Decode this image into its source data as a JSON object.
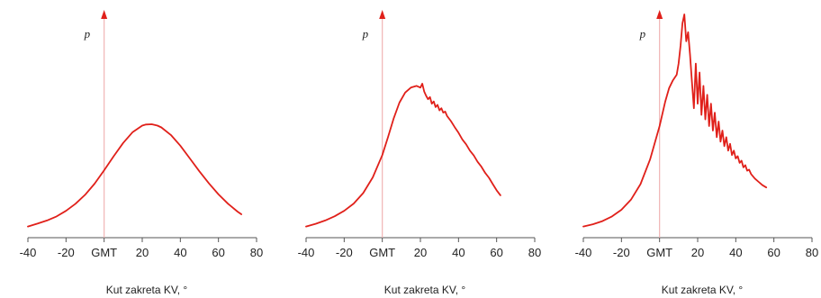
{
  "colors": {
    "curve": "#e0201a",
    "axis": "#555555",
    "tdc_line": "#f0b4b4",
    "tdc_arrow": "#e0201a"
  },
  "chart_data": [
    {
      "type": "line",
      "xlabel": "Kut zakreta KV, °",
      "ylabel": "p",
      "xlim": [
        -40,
        80
      ],
      "ylim": [
        0,
        1
      ],
      "xticks": [
        "-40",
        "-20",
        "GMT",
        "20",
        "40",
        "60",
        "80"
      ],
      "xtick_values": [
        -40,
        -20,
        0,
        20,
        40,
        60,
        80
      ],
      "series": [
        {
          "x": [
            -40,
            -35,
            -30,
            -25,
            -20,
            -15,
            -10,
            -5,
            0,
            5,
            10,
            15,
            20,
            22,
            25,
            28,
            30,
            35,
            40,
            45,
            50,
            55,
            60,
            65,
            70,
            72
          ],
          "y": [
            0.05,
            0.063,
            0.077,
            0.095,
            0.12,
            0.152,
            0.192,
            0.242,
            0.302,
            0.365,
            0.424,
            0.473,
            0.502,
            0.507,
            0.508,
            0.502,
            0.494,
            0.46,
            0.412,
            0.355,
            0.297,
            0.243,
            0.194,
            0.152,
            0.117,
            0.105
          ]
        }
      ]
    },
    {
      "type": "line",
      "xlabel": "Kut zakreta KV, °",
      "ylabel": "p",
      "xlim": [
        -40,
        80
      ],
      "ylim": [
        0,
        1
      ],
      "xticks": [
        "-40",
        "-20",
        "GMT",
        "20",
        "40",
        "60",
        "80"
      ],
      "xtick_values": [
        -40,
        -20,
        0,
        20,
        40,
        60,
        80
      ],
      "series": [
        {
          "x": [
            -40,
            -35,
            -30,
            -25,
            -20,
            -15,
            -10,
            -5,
            0,
            3,
            6,
            9,
            12,
            15,
            18,
            20,
            21,
            22,
            23,
            24,
            25,
            26,
            27,
            28,
            29,
            30,
            31,
            32,
            33,
            34,
            36,
            38,
            40,
            42,
            44,
            46,
            48,
            50,
            52,
            54,
            56,
            58,
            60,
            62
          ],
          "y": [
            0.05,
            0.062,
            0.077,
            0.096,
            0.12,
            0.153,
            0.2,
            0.27,
            0.37,
            0.45,
            0.535,
            0.605,
            0.65,
            0.672,
            0.68,
            0.672,
            0.69,
            0.655,
            0.635,
            0.62,
            0.63,
            0.6,
            0.61,
            0.585,
            0.595,
            0.57,
            0.58,
            0.56,
            0.565,
            0.545,
            0.522,
            0.495,
            0.47,
            0.44,
            0.418,
            0.39,
            0.368,
            0.34,
            0.318,
            0.29,
            0.268,
            0.24,
            0.212,
            0.19
          ]
        }
      ]
    },
    {
      "type": "line",
      "xlabel": "Kut zakreta KV, °",
      "ylabel": "p",
      "xlim": [
        -40,
        80
      ],
      "ylim": [
        0,
        1
      ],
      "xticks": [
        "-40",
        "-20",
        "GMT",
        "20",
        "40",
        "60",
        "80"
      ],
      "xtick_values": [
        -40,
        -20,
        0,
        20,
        40,
        60,
        80
      ],
      "series": [
        {
          "x": [
            -40,
            -35,
            -30,
            -25,
            -20,
            -15,
            -10,
            -5,
            0,
            3,
            5,
            7,
            9,
            10,
            11,
            12,
            13,
            14,
            15,
            16,
            17,
            18,
            19,
            20,
            21,
            22,
            23,
            24,
            25,
            26,
            27,
            28,
            29,
            30,
            31,
            32,
            33,
            34,
            35,
            36,
            37,
            38,
            39,
            40,
            41,
            42,
            43,
            44,
            45,
            46,
            47,
            48,
            50,
            52,
            54,
            56
          ],
          "y": [
            0.05,
            0.06,
            0.074,
            0.095,
            0.125,
            0.17,
            0.24,
            0.35,
            0.5,
            0.61,
            0.67,
            0.705,
            0.73,
            0.78,
            0.86,
            0.96,
            1.0,
            0.88,
            0.92,
            0.82,
            0.7,
            0.58,
            0.78,
            0.6,
            0.74,
            0.55,
            0.68,
            0.53,
            0.64,
            0.5,
            0.6,
            0.48,
            0.56,
            0.45,
            0.52,
            0.43,
            0.48,
            0.41,
            0.45,
            0.39,
            0.42,
            0.37,
            0.39,
            0.355,
            0.365,
            0.335,
            0.345,
            0.315,
            0.325,
            0.3,
            0.305,
            0.285,
            0.265,
            0.25,
            0.235,
            0.225
          ]
        }
      ]
    }
  ]
}
